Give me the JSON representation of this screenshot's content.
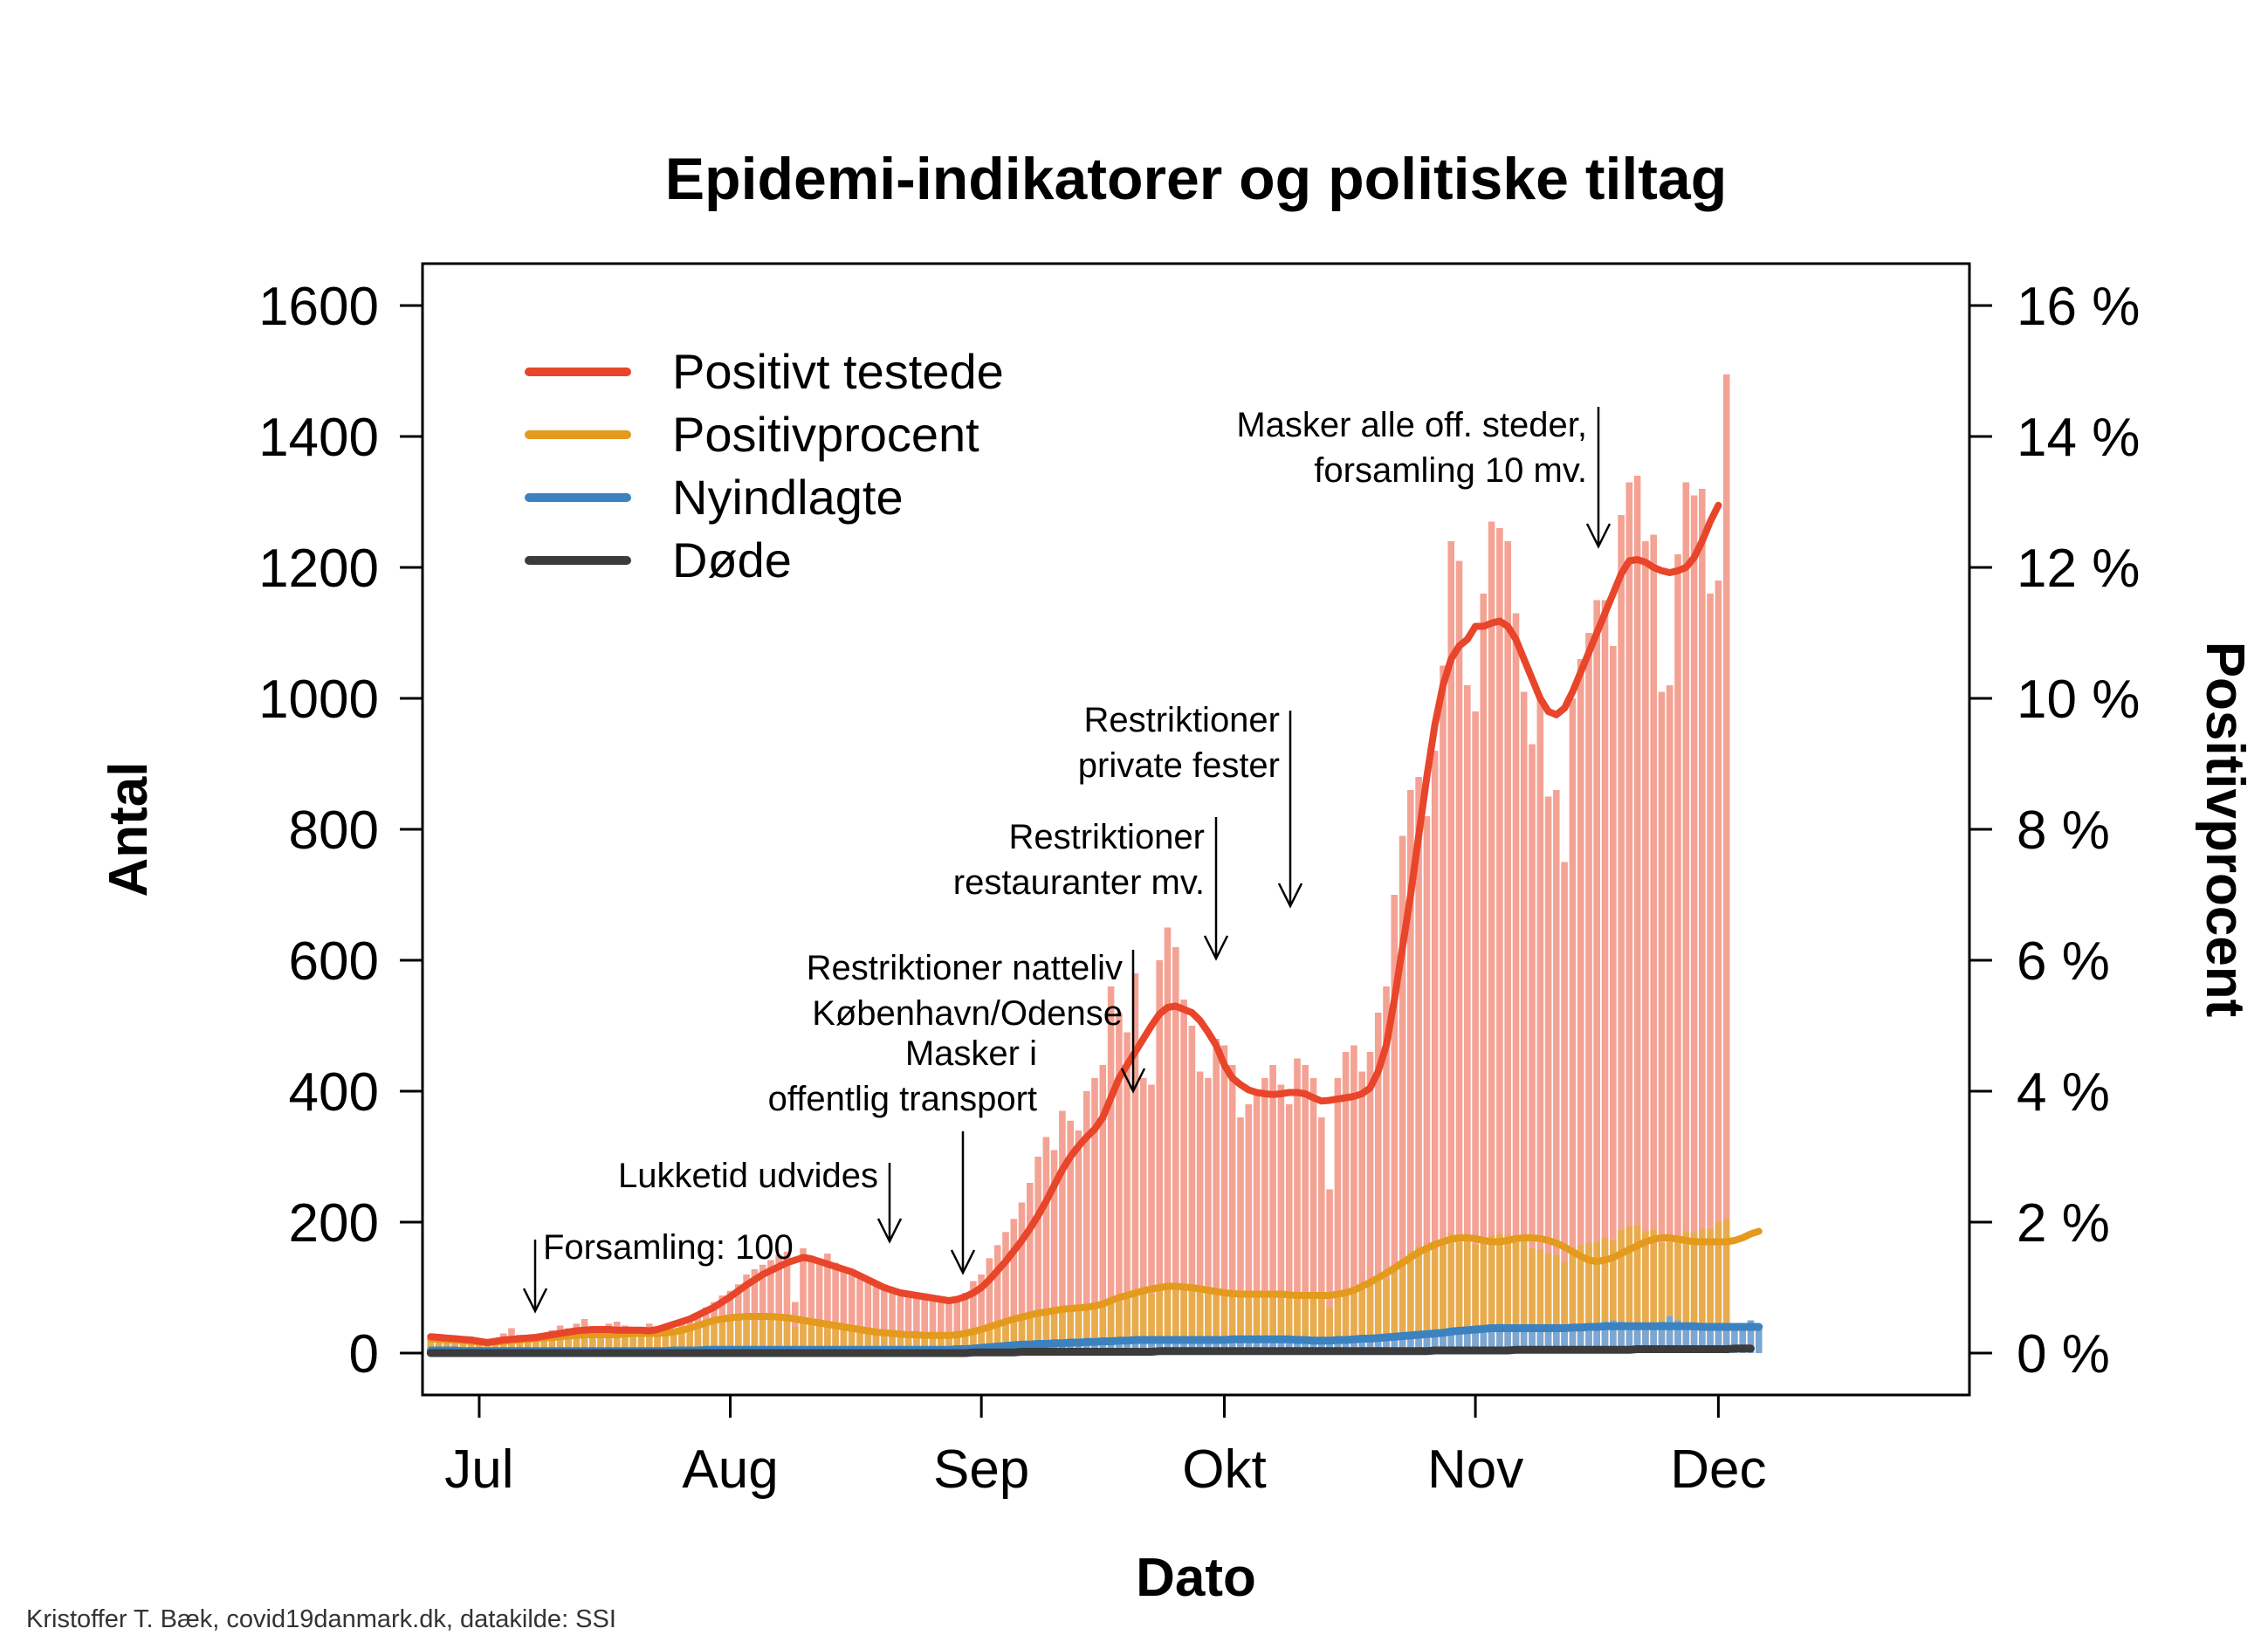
{
  "chart_data": {
    "type": "bar",
    "title": "Epidemi-indikatorer og politiske tiltag",
    "xlabel": "Dato",
    "ylabel": "Antal",
    "y2label": "Positivprocent",
    "credit": "Kristoffer T. Bæk, covid19danmark.dk, datakilde: SSI",
    "ylim": [
      0,
      1600
    ],
    "y2lim": [
      0,
      16
    ],
    "xlim_day": [
      -7,
      184
    ],
    "yticks": [
      "0",
      "200",
      "400",
      "600",
      "800",
      "1000",
      "1200",
      "1400",
      "1600"
    ],
    "y2ticks": [
      "0 %",
      "2 %",
      "4 %",
      "6 %",
      "8 %",
      "10 %",
      "12 %",
      "14 %",
      "16 %"
    ],
    "xticks": [
      {
        "label": "Jul",
        "day": 0
      },
      {
        "label": "Aug",
        "day": 31
      },
      {
        "label": "Sep",
        "day": 62
      },
      {
        "label": "Okt",
        "day": 92
      },
      {
        "label": "Nov",
        "day": 123
      },
      {
        "label": "Dec",
        "day": 153
      }
    ],
    "start_day": -6,
    "legend": [
      {
        "label": "Positivt testede",
        "color": "#e8452a"
      },
      {
        "label": "Positivprocent",
        "color": "#e39a1d"
      },
      {
        "label": "Nyindlagte",
        "color": "#3c82c0"
      },
      {
        "label": "Døde",
        "color": "#3b3b3b"
      }
    ],
    "colors": {
      "cases_bar": "#f4a294",
      "cases_line": "#e8452a",
      "pct_bar": "#e8ac4c",
      "pct_line": "#e39a1d",
      "hosp_bar": "#7aa7d4",
      "hosp_line": "#3c82c0",
      "deaths_line": "#3b3b3b"
    },
    "series": [
      {
        "name": "Positivt testede",
        "type": "bar",
        "values": [
          28,
          25,
          22,
          20,
          18,
          16,
          14,
          18,
          20,
          30,
          38,
          28,
          22,
          25,
          30,
          35,
          42,
          38,
          45,
          52,
          40,
          38,
          45,
          48,
          42,
          40,
          38,
          45,
          40,
          35,
          38,
          48,
          55,
          60,
          70,
          78,
          88,
          95,
          105,
          120,
          128,
          135,
          142,
          150,
          155,
          78,
          160,
          148,
          140,
          152,
          138,
          130,
          125,
          120,
          115,
          110,
          105,
          100,
          95,
          90,
          88,
          85,
          82,
          80,
          78,
          85,
          92,
          110,
          120,
          145,
          165,
          185,
          205,
          230,
          260,
          300,
          330,
          310,
          370,
          355,
          340,
          400,
          420,
          440,
          560,
          520,
          490,
          580,
          420,
          410,
          600,
          650,
          620,
          540,
          500,
          430,
          420,
          480,
          470,
          440,
          360,
          380,
          400,
          420,
          440,
          410,
          380,
          450,
          440,
          420,
          360,
          250,
          420,
          460,
          470,
          430,
          460,
          520,
          560,
          700,
          790,
          860,
          880,
          820,
          920,
          1050,
          1240,
          1210,
          1020,
          980,
          1160,
          1270,
          1260,
          1240,
          1130,
          1010,
          930,
          1000,
          850,
          860,
          750,
          1000,
          1060,
          1100,
          1150,
          1150,
          1080,
          1280,
          1330,
          1340,
          1240,
          1250,
          1010,
          1020,
          1220,
          1330,
          1310,
          1320,
          1160,
          1180,
          1495
        ]
      },
      {
        "name": "Positivt testede",
        "type": "line",
        "values": [
          25,
          24,
          23,
          22,
          21,
          20,
          18,
          16,
          18,
          20,
          21,
          22,
          23,
          24,
          26,
          28,
          30,
          32,
          34,
          35,
          36,
          36,
          36,
          35,
          35,
          35,
          35,
          34,
          36,
          40,
          44,
          48,
          52,
          58,
          64,
          70,
          78,
          86,
          95,
          104,
          112,
          120,
          126,
          132,
          138,
          142,
          146,
          144,
          140,
          136,
          132,
          128,
          124,
          118,
          112,
          106,
          100,
          96,
          92,
          90,
          88,
          86,
          84,
          82,
          80,
          82,
          86,
          92,
          100,
          112,
          126,
          140,
          156,
          172,
          190,
          210,
          232,
          256,
          280,
          300,
          316,
          330,
          342,
          360,
          390,
          420,
          440,
          460,
          480,
          500,
          518,
          528,
          530,
          525,
          520,
          508,
          490,
          470,
          440,
          420,
          410,
          402,
          398,
          396,
          395,
          396,
          398,
          398,
          396,
          390,
          385,
          386,
          388,
          390,
          392,
          396,
          405,
          430,
          470,
          540,
          620,
          700,
          790,
          880,
          960,
          1020,
          1060,
          1080,
          1090,
          1110,
          1110,
          1115,
          1118,
          1110,
          1090,
          1060,
          1030,
          1000,
          980,
          975,
          985,
          1010,
          1040,
          1070,
          1100,
          1130,
          1160,
          1190,
          1210,
          1212,
          1208,
          1200,
          1195,
          1192,
          1195,
          1200,
          1215,
          1240,
          1270,
          1295
        ]
      },
      {
        "name": "Positivprocent",
        "type": "bar",
        "values": [
          0.22,
          0.2,
          0.18,
          0.17,
          0.16,
          0.14,
          0.12,
          0.14,
          0.16,
          0.22,
          0.26,
          0.2,
          0.18,
          0.2,
          0.22,
          0.24,
          0.28,
          0.26,
          0.3,
          0.32,
          0.28,
          0.26,
          0.3,
          0.32,
          0.3,
          0.28,
          0.27,
          0.3,
          0.28,
          0.26,
          0.28,
          0.36,
          0.42,
          0.46,
          0.5,
          0.52,
          0.55,
          0.56,
          0.58,
          0.6,
          0.58,
          0.56,
          0.58,
          0.6,
          0.55,
          0.4,
          0.52,
          0.5,
          0.48,
          0.46,
          0.44,
          0.4,
          0.38,
          0.35,
          0.33,
          0.32,
          0.3,
          0.28,
          0.27,
          0.26,
          0.26,
          0.25,
          0.25,
          0.24,
          0.24,
          0.26,
          0.28,
          0.3,
          0.34,
          0.38,
          0.42,
          0.46,
          0.5,
          0.54,
          0.58,
          0.62,
          0.64,
          0.66,
          0.7,
          0.68,
          0.66,
          0.7,
          0.74,
          0.76,
          0.84,
          0.88,
          0.9,
          0.95,
          0.92,
          0.9,
          1.0,
          1.05,
          1.02,
          1.0,
          0.98,
          0.94,
          0.92,
          0.96,
          0.94,
          0.9,
          0.86,
          0.88,
          0.9,
          0.92,
          0.94,
          0.92,
          0.88,
          0.94,
          0.94,
          0.92,
          0.86,
          0.7,
          0.92,
          0.98,
          1.02,
          1.04,
          1.06,
          1.1,
          1.14,
          1.3,
          1.42,
          1.56,
          1.62,
          1.64,
          1.68,
          1.74,
          1.82,
          1.8,
          1.7,
          1.66,
          1.72,
          1.8,
          1.82,
          1.8,
          1.76,
          1.72,
          1.6,
          1.58,
          1.52,
          1.5,
          1.4,
          1.58,
          1.64,
          1.68,
          1.7,
          1.76,
          1.72,
          1.88,
          1.94,
          1.96,
          1.86,
          1.88,
          1.68,
          1.7,
          1.8,
          1.86,
          1.84,
          1.9,
          1.9,
          2.0,
          2.05
        ]
      },
      {
        "name": "Positivprocent",
        "type": "line",
        "values": [
          0.22,
          0.21,
          0.2,
          0.2,
          0.19,
          0.18,
          0.17,
          0.16,
          0.17,
          0.18,
          0.19,
          0.2,
          0.21,
          0.22,
          0.23,
          0.24,
          0.25,
          0.26,
          0.27,
          0.28,
          0.28,
          0.28,
          0.28,
          0.28,
          0.29,
          0.3,
          0.3,
          0.3,
          0.3,
          0.31,
          0.32,
          0.35,
          0.38,
          0.42,
          0.46,
          0.5,
          0.52,
          0.54,
          0.55,
          0.56,
          0.56,
          0.56,
          0.56,
          0.55,
          0.54,
          0.52,
          0.5,
          0.48,
          0.46,
          0.44,
          0.42,
          0.4,
          0.38,
          0.36,
          0.34,
          0.32,
          0.31,
          0.3,
          0.29,
          0.28,
          0.28,
          0.27,
          0.27,
          0.27,
          0.27,
          0.28,
          0.3,
          0.33,
          0.36,
          0.4,
          0.44,
          0.48,
          0.52,
          0.55,
          0.58,
          0.61,
          0.63,
          0.65,
          0.67,
          0.68,
          0.69,
          0.7,
          0.72,
          0.75,
          0.8,
          0.85,
          0.88,
          0.92,
          0.95,
          0.98,
          1.0,
          1.02,
          1.02,
          1.01,
          1.0,
          0.98,
          0.96,
          0.94,
          0.92,
          0.91,
          0.9,
          0.9,
          0.9,
          0.9,
          0.9,
          0.9,
          0.89,
          0.88,
          0.88,
          0.88,
          0.88,
          0.88,
          0.9,
          0.92,
          0.96,
          1.02,
          1.08,
          1.15,
          1.22,
          1.3,
          1.38,
          1.46,
          1.54,
          1.6,
          1.66,
          1.7,
          1.74,
          1.76,
          1.76,
          1.75,
          1.72,
          1.7,
          1.7,
          1.72,
          1.75,
          1.76,
          1.76,
          1.75,
          1.72,
          1.68,
          1.62,
          1.55,
          1.48,
          1.42,
          1.4,
          1.42,
          1.46,
          1.52,
          1.58,
          1.64,
          1.7,
          1.74,
          1.76,
          1.76,
          1.74,
          1.72,
          1.7,
          1.7,
          1.7,
          1.7,
          1.7,
          1.72,
          1.76,
          1.82,
          1.86
        ]
      },
      {
        "name": "Nyindlagte",
        "type": "bar",
        "values": [
          5,
          5,
          4,
          4,
          4,
          3,
          3,
          3,
          3,
          4,
          4,
          3,
          3,
          3,
          4,
          4,
          4,
          3,
          3,
          4,
          4,
          3,
          4,
          4,
          3,
          4,
          4,
          3,
          4,
          4,
          5,
          5,
          5,
          6,
          6,
          6,
          7,
          6,
          7,
          7,
          6,
          6,
          7,
          7,
          6,
          5,
          6,
          6,
          6,
          5,
          6,
          5,
          6,
          5,
          5,
          6,
          5,
          6,
          5,
          5,
          6,
          6,
          5,
          6,
          7,
          7,
          8,
          9,
          10,
          11,
          12,
          13,
          14,
          14,
          15,
          16,
          16,
          16,
          17,
          18,
          18,
          19,
          20,
          21,
          22,
          22,
          24,
          24,
          23,
          22,
          24,
          26,
          24,
          23,
          22,
          22,
          21,
          22,
          23,
          24,
          24,
          23,
          22,
          23,
          24,
          25,
          26,
          22,
          21,
          20,
          18,
          20,
          21,
          23,
          24,
          25,
          25,
          26,
          27,
          28,
          29,
          30,
          31,
          32,
          33,
          34,
          36,
          38,
          40,
          41,
          43,
          44,
          45,
          44,
          42,
          40,
          38,
          40,
          42,
          44,
          44,
          42,
          42,
          44,
          46,
          48,
          50,
          48,
          46,
          44,
          40,
          42,
          48,
          56,
          50,
          46,
          44,
          42,
          40,
          40,
          40,
          42,
          44,
          50,
          42
        ]
      },
      {
        "name": "Nyindlagte",
        "type": "line",
        "values": [
          4,
          4,
          4,
          4,
          3,
          3,
          3,
          3,
          3,
          3,
          3,
          3,
          3,
          3,
          3,
          3,
          3,
          3,
          3,
          3,
          3,
          3,
          3,
          3,
          3,
          3,
          3,
          3,
          3,
          3,
          4,
          4,
          4,
          4,
          5,
          5,
          5,
          5,
          5,
          5,
          5,
          5,
          5,
          5,
          5,
          5,
          5,
          5,
          5,
          5,
          5,
          5,
          5,
          5,
          5,
          5,
          5,
          5,
          5,
          5,
          5,
          5,
          5,
          5,
          5,
          6,
          6,
          7,
          8,
          9,
          10,
          11,
          12,
          13,
          13,
          14,
          14,
          15,
          15,
          16,
          16,
          17,
          17,
          18,
          18,
          19,
          19,
          20,
          20,
          20,
          20,
          20,
          20,
          20,
          20,
          20,
          20,
          20,
          20,
          21,
          21,
          21,
          21,
          21,
          21,
          21,
          21,
          20,
          20,
          19,
          19,
          19,
          20,
          20,
          21,
          22,
          22,
          23,
          24,
          25,
          26,
          27,
          28,
          29,
          30,
          31,
          33,
          34,
          35,
          36,
          37,
          38,
          38,
          38,
          38,
          38,
          38,
          38,
          38,
          38,
          38,
          39,
          39,
          40,
          40,
          41,
          41,
          41,
          41,
          41,
          41,
          41,
          41,
          41,
          41,
          41,
          41,
          40,
          40,
          40,
          40,
          40,
          40,
          40,
          40
        ]
      },
      {
        "name": "Døde",
        "type": "line",
        "values": [
          0,
          0,
          0,
          0,
          0,
          0,
          0,
          0,
          0,
          0,
          0,
          0,
          0,
          0,
          0,
          0,
          0,
          0,
          0,
          0,
          0,
          0,
          0,
          0,
          0,
          0,
          0,
          0,
          0,
          0,
          0,
          0,
          0,
          0,
          0,
          0,
          0,
          0,
          0,
          0,
          0,
          0,
          0,
          0,
          0,
          0,
          0,
          0,
          0,
          0,
          0,
          0,
          0,
          0,
          0,
          0,
          0,
          0,
          0,
          0,
          0,
          0,
          0,
          0,
          0,
          0,
          0,
          1,
          1,
          1,
          1,
          1,
          1,
          2,
          2,
          2,
          2,
          2,
          2,
          2,
          2,
          2,
          2,
          2,
          2,
          2,
          2,
          2,
          2,
          2,
          3,
          3,
          3,
          3,
          3,
          3,
          3,
          3,
          3,
          3,
          3,
          3,
          3,
          3,
          3,
          3,
          3,
          3,
          3,
          3,
          3,
          3,
          3,
          3,
          3,
          3,
          3,
          3,
          3,
          3,
          3,
          3,
          3,
          3,
          4,
          4,
          4,
          4,
          4,
          4,
          4,
          4,
          4,
          4,
          5,
          5,
          5,
          5,
          5,
          5,
          5,
          5,
          5,
          5,
          5,
          5,
          5,
          5,
          5,
          6,
          6,
          6,
          6,
          6,
          6,
          6,
          6,
          6,
          6,
          6,
          6,
          7,
          7,
          7
        ]
      }
    ],
    "annotations": [
      {
        "lines": [
          "Forsamling: 100"
        ],
        "day": 6,
        "align": "left"
      },
      {
        "lines": [
          "Lukketid udvides"
        ],
        "day": 44,
        "align": "right"
      },
      {
        "lines": [
          "Masker i",
          "offentlig transport"
        ],
        "day": 52,
        "align": "right"
      },
      {
        "lines": [
          "Restriktioner natteliv",
          "København/Odense"
        ],
        "day": 70,
        "align": "right"
      },
      {
        "lines": [
          "Restriktioner",
          "restauranter mv."
        ],
        "day": 79,
        "align": "right"
      },
      {
        "lines": [
          "Restriktioner",
          "private fester"
        ],
        "day": 87,
        "align": "right"
      },
      {
        "lines": [
          "Masker alle off. steder,",
          "forsamling 10 mv."
        ],
        "day": 120,
        "align": "right"
      }
    ]
  }
}
